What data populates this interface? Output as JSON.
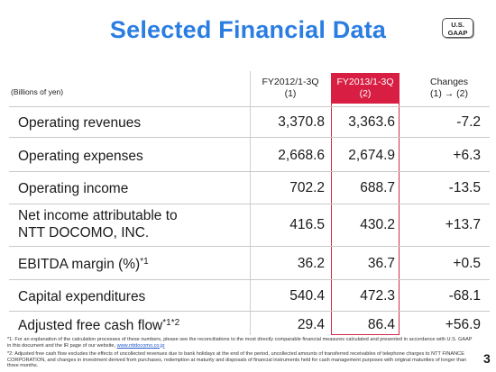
{
  "title": "Selected Financial Data",
  "badge": {
    "line1": "U.S.",
    "line2": "GAAP"
  },
  "unit_label": "(Billions of yen)",
  "columns": [
    {
      "line1": "FY2012/1-3Q",
      "line2": "(1)"
    },
    {
      "line1": "FY2013/1-3Q",
      "line2": "(2)"
    },
    {
      "line1": "Changes",
      "line2": "(1) → (2)"
    }
  ],
  "rows": [
    {
      "label": "Operating revenues",
      "sup": "",
      "v1": "3,370.8",
      "v2": "3,363.6",
      "change": "-7.2"
    },
    {
      "label": "Operating expenses",
      "sup": "",
      "v1": "2,668.6",
      "v2": "2,674.9",
      "change": "+6.3"
    },
    {
      "label": "Operating income",
      "sup": "",
      "v1": "702.2",
      "v2": "688.7",
      "change": "-13.5"
    },
    {
      "label": "Net income attributable to",
      "label2": "NTT DOCOMO, INC.",
      "sup": "",
      "v1": "416.5",
      "v2": "430.2",
      "change": "+13.7"
    },
    {
      "label": "EBITDA margin (%)",
      "sup": "*1",
      "v1": "36.2",
      "v2": "36.7",
      "change": "+0.5"
    },
    {
      "label": "Capital expenditures",
      "sup": "",
      "v1": "540.4",
      "v2": "472.3",
      "change": "-68.1"
    },
    {
      "label": "Adjusted free cash flow",
      "sup": "*1*2",
      "v1": "29.4",
      "v2": "86.4",
      "change": "+56.9"
    }
  ],
  "footnotes": {
    "note1": "*1: For an explanation of the calculation processes of these numbers, please see the reconciliations to the most directly comparable financial measures calculated and presented in accordance with U.S. GAAP in this document and the IR page of our website,",
    "note1_link": "www.nttdocomo.co.jp",
    "note2": "*2: Adjusted free cash flow excludes the effects of uncollected revenues due to bank holidays at the end of the period, uncollected amounts of transferred receivables of telephone charges to NTT FINANCE CORPORATION, and changes in investment derived from purchases, redemption at maturity and disposals of financial instruments held for cash management purposes with original maturities of longer than three months."
  },
  "page_number": "3"
}
